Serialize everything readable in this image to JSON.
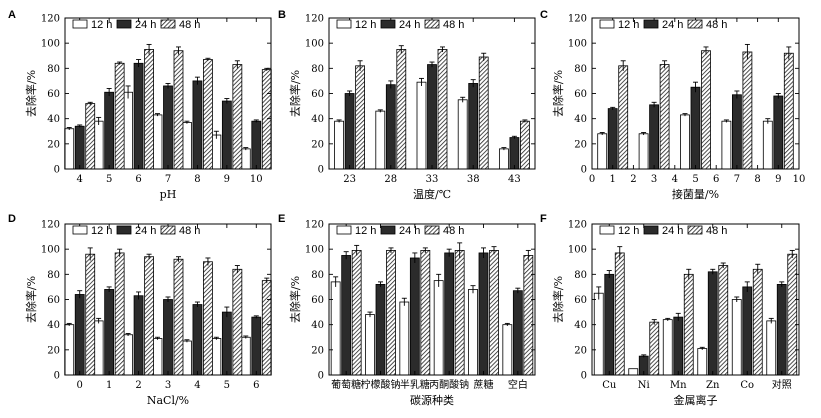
{
  "figure": {
    "legend_labels": [
      "12 h",
      "24 h",
      "48 h"
    ],
    "colors": {
      "bar_12h": "#ffffff",
      "bar_24h": "#2b2b2b",
      "bar_48h_fill": "#ffffff",
      "bar_48h_hatch": "#222222",
      "axis": "#000000"
    }
  },
  "chart_data": [
    {
      "type": "bar",
      "letter": "A",
      "title": "",
      "xlabel": "pH",
      "ylabel": "去除率/%",
      "categories": [
        "4",
        "5",
        "6",
        "7",
        "8",
        "9",
        "10"
      ],
      "x_ticks": [
        "4",
        "5",
        "6",
        "7",
        "8",
        "9",
        "10"
      ],
      "ylim": [
        0,
        120
      ],
      "y_ticks": [
        0,
        20,
        40,
        60,
        80,
        100,
        120
      ],
      "series": [
        {
          "name": "12 h",
          "values": [
            32,
            38,
            61,
            43,
            37,
            27,
            16
          ],
          "errors": [
            1,
            3,
            5,
            1,
            1,
            3,
            1
          ]
        },
        {
          "name": "24 h",
          "values": [
            34,
            61,
            84,
            66,
            70,
            54,
            38
          ],
          "errors": [
            1,
            3,
            3,
            2,
            3,
            2,
            1
          ]
        },
        {
          "name": "48 h",
          "values": [
            52,
            84,
            95,
            94,
            87,
            83,
            79
          ],
          "errors": [
            1,
            1,
            4,
            3,
            1,
            3,
            1
          ]
        }
      ]
    },
    {
      "type": "bar",
      "letter": "B",
      "title": "",
      "xlabel": "温度/℃",
      "ylabel": "去除率/%",
      "categories": [
        "23",
        "28",
        "33",
        "38",
        "43"
      ],
      "x_ticks": [
        "23",
        "28",
        "33",
        "38",
        "43"
      ],
      "ylim": [
        0,
        120
      ],
      "y_ticks": [
        0,
        20,
        40,
        60,
        80,
        100,
        120
      ],
      "series": [
        {
          "name": "12 h",
          "values": [
            38,
            46,
            69,
            55,
            16
          ],
          "errors": [
            1,
            1,
            3,
            2,
            1
          ]
        },
        {
          "name": "24 h",
          "values": [
            60,
            67,
            83,
            68,
            25
          ],
          "errors": [
            2,
            3,
            2,
            3,
            1
          ]
        },
        {
          "name": "48 h",
          "values": [
            82,
            95,
            95,
            89,
            38
          ],
          "errors": [
            4,
            3,
            2,
            3,
            1
          ]
        }
      ]
    },
    {
      "type": "bar",
      "letter": "C",
      "title": "",
      "xlabel": "接菌量/%",
      "ylabel": "去除率/%",
      "categories": [
        "1",
        "3",
        "5",
        "7",
        "9"
      ],
      "x_ticks": [
        "0",
        "1",
        "2",
        "3",
        "4",
        "5",
        "6",
        "7",
        "8",
        "9",
        "10"
      ],
      "ylim": [
        0,
        120
      ],
      "y_ticks": [
        0,
        20,
        40,
        60,
        80,
        100,
        120
      ],
      "series": [
        {
          "name": "12 h",
          "values": [
            28,
            28,
            43,
            38,
            38
          ],
          "errors": [
            1,
            1,
            1,
            1,
            2
          ]
        },
        {
          "name": "24 h",
          "values": [
            48,
            51,
            65,
            59,
            58
          ],
          "errors": [
            1,
            2,
            4,
            3,
            2
          ]
        },
        {
          "name": "48 h",
          "values": [
            82,
            83,
            94,
            93,
            92
          ],
          "errors": [
            4,
            3,
            3,
            6,
            5
          ]
        }
      ]
    },
    {
      "type": "bar",
      "letter": "D",
      "title": "",
      "xlabel": "NaCl/%",
      "ylabel": "去除率/%",
      "categories": [
        "0",
        "1",
        "2",
        "3",
        "4",
        "5",
        "6"
      ],
      "x_ticks": [
        "0",
        "1",
        "2",
        "3",
        "4",
        "5",
        "6"
      ],
      "ylim": [
        0,
        120
      ],
      "y_ticks": [
        0,
        20,
        40,
        60,
        80,
        100,
        120
      ],
      "series": [
        {
          "name": "12 h",
          "values": [
            40,
            43,
            32,
            29,
            27,
            29,
            30
          ],
          "errors": [
            1,
            2,
            1,
            1,
            1,
            1,
            1
          ]
        },
        {
          "name": "24 h",
          "values": [
            64,
            68,
            63,
            60,
            56,
            50,
            46
          ],
          "errors": [
            3,
            2,
            3,
            2,
            2,
            4,
            1
          ]
        },
        {
          "name": "48 h",
          "values": [
            96,
            97,
            94,
            92,
            90,
            84,
            75
          ],
          "errors": [
            5,
            3,
            2,
            2,
            3,
            3,
            2
          ]
        }
      ]
    },
    {
      "type": "bar",
      "letter": "E",
      "title": "",
      "xlabel": "碳源种类",
      "ylabel": "去除率/%",
      "categories": [
        "葡萄糖",
        "柠檬酸钠",
        "半乳糖",
        "丙酮酸钠",
        "蔗糖",
        "空白"
      ],
      "x_ticks": [
        "葡萄糖",
        "柠檬酸钠",
        "半乳糖",
        "丙酮酸钠",
        "蔗糖",
        "空白"
      ],
      "ylim": [
        0,
        120
      ],
      "y_ticks": [
        0,
        20,
        40,
        60,
        80,
        100,
        120
      ],
      "series": [
        {
          "name": "12 h",
          "values": [
            74,
            48,
            58,
            75,
            68,
            40
          ],
          "errors": [
            4,
            2,
            3,
            5,
            3,
            1
          ]
        },
        {
          "name": "24 h",
          "values": [
            95,
            72,
            93,
            97,
            97,
            67
          ],
          "errors": [
            3,
            2,
            4,
            3,
            4,
            2
          ]
        },
        {
          "name": "48 h",
          "values": [
            99,
            99,
            99,
            99,
            99,
            95
          ],
          "errors": [
            4,
            2,
            2,
            6,
            3,
            4
          ]
        }
      ]
    },
    {
      "type": "bar",
      "letter": "F",
      "title": "",
      "xlabel": "金属离子",
      "ylabel": "去除率/%",
      "categories": [
        "Cu",
        "Ni",
        "Mn",
        "Zn",
        "Co",
        "对照"
      ],
      "x_ticks": [
        "Cu",
        "Ni",
        "Mn",
        "Zn",
        "Co",
        "对照"
      ],
      "ylim": [
        0,
        120
      ],
      "y_ticks": [
        0,
        20,
        40,
        60,
        80,
        100,
        120
      ],
      "series": [
        {
          "name": "12 h",
          "values": [
            65,
            5,
            44,
            21,
            60,
            43
          ],
          "errors": [
            5,
            0,
            1,
            1,
            2,
            2
          ]
        },
        {
          "name": "24 h",
          "values": [
            80,
            15,
            46,
            82,
            70,
            72
          ],
          "errors": [
            3,
            1,
            3,
            2,
            4,
            2
          ]
        },
        {
          "name": "48 h",
          "values": [
            97,
            42,
            80,
            87,
            84,
            96
          ],
          "errors": [
            5,
            2,
            4,
            2,
            4,
            3
          ]
        }
      ]
    }
  ]
}
